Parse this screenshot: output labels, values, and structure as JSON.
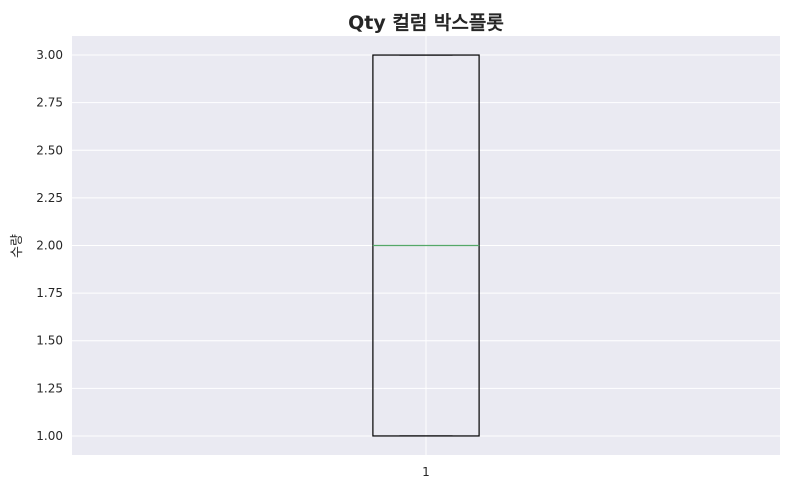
{
  "chart_data": {
    "type": "box",
    "title": "Qty 컬럼 박스플롯",
    "xlabel": "",
    "ylabel": "수량",
    "categories": [
      "1"
    ],
    "boxes": [
      {
        "category": "1",
        "min": 1.0,
        "q1": 1.0,
        "median": 2.0,
        "q3": 3.0,
        "max": 3.0
      }
    ],
    "ylim": [
      0.9,
      3.1
    ],
    "yticks": [
      1.0,
      1.25,
      1.5,
      1.75,
      2.0,
      2.25,
      2.5,
      2.75,
      3.0
    ],
    "ytick_labels": [
      "1.00",
      "1.25",
      "1.50",
      "1.75",
      "2.00",
      "2.25",
      "2.50",
      "2.75",
      "3.00"
    ],
    "grid": true,
    "colors": {
      "plot_background": "#eaeaf2",
      "grid": "#ffffff",
      "box_edge": "#000000",
      "median": "#55a868"
    }
  }
}
